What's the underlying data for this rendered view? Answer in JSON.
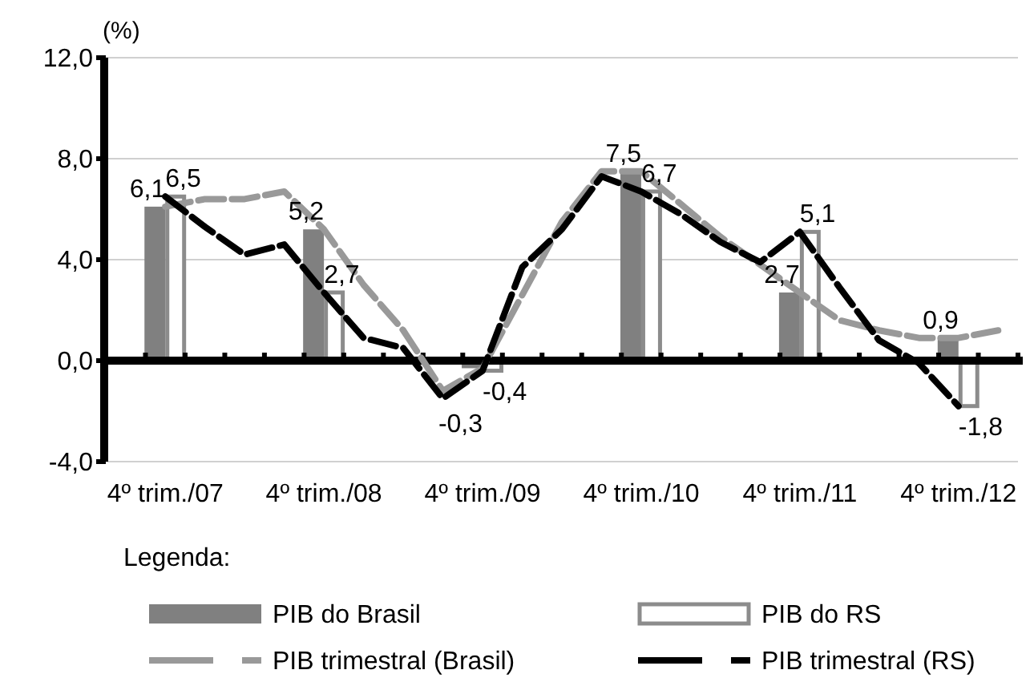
{
  "chart_data": {
    "type": "bar",
    "ylabel": "(%)",
    "legend_title": "Legenda:",
    "categories": [
      null,
      "4º trim./07",
      null,
      null,
      null,
      "4º trim./08",
      null,
      null,
      null,
      "4º trim./09",
      null,
      null,
      null,
      "4º trim./10",
      null,
      null,
      null,
      "4º trim./11",
      null,
      null,
      null,
      "4º trim./12",
      null
    ],
    "series": [
      {
        "name": "PIB do Brasil",
        "color": "#808080",
        "values": [
          null,
          6.1,
          null,
          null,
          null,
          5.2,
          null,
          null,
          null,
          -0.3,
          null,
          null,
          null,
          7.5,
          null,
          null,
          null,
          2.7,
          null,
          null,
          null,
          0.9,
          null
        ],
        "value_labels": [
          null,
          "6,1",
          null,
          null,
          null,
          "5,2",
          null,
          null,
          null,
          "-0,3",
          null,
          null,
          null,
          "7,5",
          null,
          null,
          null,
          "2,7",
          null,
          null,
          null,
          "0,9",
          null
        ]
      },
      {
        "name": "PIB do RS",
        "color": "#8c8c8c",
        "values": [
          null,
          6.5,
          null,
          null,
          null,
          2.7,
          null,
          null,
          null,
          -0.4,
          null,
          null,
          null,
          6.7,
          null,
          null,
          null,
          5.1,
          null,
          null,
          null,
          -1.8,
          null
        ],
        "value_labels": [
          null,
          "6,5",
          null,
          null,
          null,
          "2,7",
          null,
          null,
          null,
          "-0,4",
          null,
          null,
          null,
          "6,7",
          null,
          null,
          null,
          "5,1",
          null,
          null,
          null,
          "-1,8",
          null
        ]
      },
      {
        "name": "PIB trimestral (Brasil)",
        "type": "line",
        "color": "#999999",
        "line_style": "dashed",
        "values": [
          null,
          6.1,
          6.4,
          6.4,
          6.7,
          5.2,
          3.0,
          1.2,
          -1.2,
          -0.3,
          2.6,
          5.5,
          7.5,
          7.5,
          6.2,
          4.9,
          3.8,
          2.7,
          1.6,
          1.2,
          0.9,
          0.9,
          1.2
        ]
      },
      {
        "name": "PIB trimestral (RS)",
        "type": "line",
        "color": "#000000",
        "line_style": "dashed",
        "values": [
          null,
          6.5,
          5.3,
          4.2,
          4.6,
          2.7,
          0.9,
          0.5,
          -1.5,
          -0.4,
          3.7,
          5.2,
          7.3,
          6.7,
          5.8,
          4.7,
          3.9,
          5.1,
          2.9,
          0.8,
          -0.1,
          -1.8,
          null
        ]
      }
    ],
    "ylim": [
      -4,
      12
    ],
    "yticks": [
      {
        "value": -4,
        "label": "-4,0"
      },
      {
        "value": 0,
        "label": "0,0"
      },
      {
        "value": 4,
        "label": "4,0"
      },
      {
        "value": 8,
        "label": "8,0"
      },
      {
        "value": 12,
        "label": "12,0"
      }
    ],
    "grid": "y",
    "legend": "bottom"
  }
}
